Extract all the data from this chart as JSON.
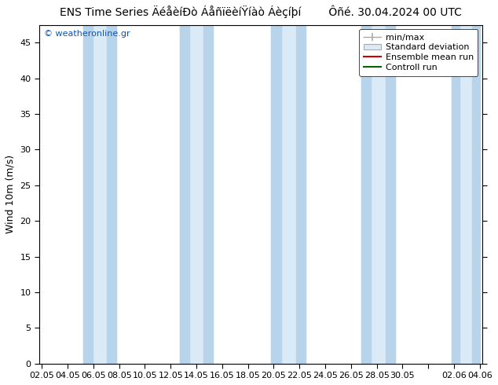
{
  "title_left": "ENS Time Series ÄéåèíÐò ÁåñïëèíŸíàò Áèçíþí",
  "title_right": "Ôñé. 30.04.2024 00 UTC",
  "ylabel": "Wind 10m (m/s)",
  "watermark": "© weatheronline.gr",
  "ylim": [
    0,
    47.5
  ],
  "yticks": [
    0,
    5,
    10,
    15,
    20,
    25,
    30,
    35,
    40,
    45
  ],
  "xtick_labels": [
    "02.05",
    "04.05",
    "06.05",
    "08.05",
    "10.05",
    "12.05",
    "14.05",
    "16.05",
    "18.05",
    "20.05",
    "22.05",
    "24.05",
    "26.05",
    "28.05",
    "30.05",
    "",
    "02.06",
    "04.06"
  ],
  "band_color": "#daeaf6",
  "band_edge_color": "#b8d4ea",
  "bg_color": "#ffffff",
  "plot_bg_color": "#ffffff",
  "line_colors": {
    "min_max_line": "#aaaaaa",
    "std_dev_fill": "#c8d8e8",
    "ensemble_mean": "#cc0000",
    "control_run": "#006600"
  },
  "legend_entries": [
    "min/max",
    "Standard deviation",
    "Ensemble mean run",
    "Controll run"
  ],
  "title_fontsize": 10,
  "tick_fontsize": 8,
  "ylabel_fontsize": 9,
  "legend_fontsize": 8,
  "band_pairs": [
    [
      3.2,
      5.8
    ],
    [
      10.7,
      13.3
    ],
    [
      17.8,
      20.5
    ],
    [
      24.8,
      27.4
    ],
    [
      31.8,
      34.0
    ]
  ],
  "n_points": 35,
  "xmin": 0,
  "xmax": 34
}
